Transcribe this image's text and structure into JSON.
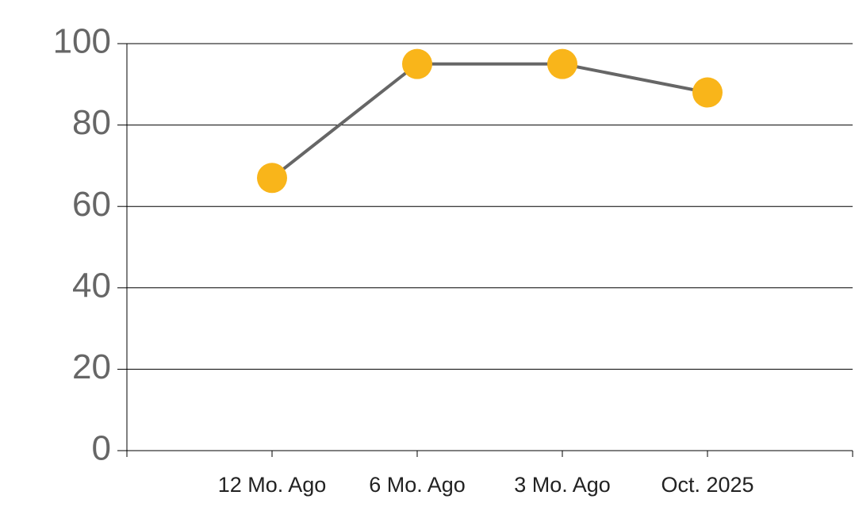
{
  "chart_data": {
    "type": "line",
    "categories": [
      "12 Mo. Ago",
      "6 Mo. Ago",
      "3 Mo. Ago",
      "Oct. 2025"
    ],
    "series": [
      {
        "color": "#f9b51a",
        "line_color": "#666666",
        "values": [
          67,
          95,
          95,
          88
        ]
      }
    ],
    "ylim": [
      0,
      100
    ],
    "yticks": [
      0,
      20,
      40,
      60,
      80,
      100
    ],
    "grid": true
  }
}
